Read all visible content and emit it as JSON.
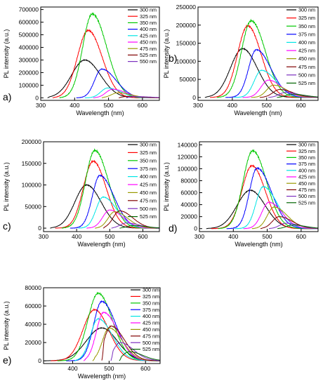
{
  "chart_data": [
    {
      "type": "line",
      "panel_label": "a)",
      "xlabel": "Wavelength (nm)",
      "ylabel": "PL intensity (a.u.)",
      "xlim": [
        300,
        650
      ],
      "ylim": [
        -20000,
        720000
      ],
      "xticks": [
        300,
        400,
        500,
        600
      ],
      "yticks": [
        0,
        100000,
        200000,
        300000,
        400000,
        500000,
        600000,
        700000
      ],
      "ytick_labels": [
        "0",
        "100000",
        "200000",
        "300000",
        "400000",
        "500000",
        "600000",
        "700000"
      ],
      "legend_position": "top-right",
      "series": [
        {
          "name": "300 nm",
          "color": "#000000",
          "start": 320,
          "peak": 430,
          "amp": 300000,
          "sl": 55,
          "sr": 65
        },
        {
          "name": "325 nm",
          "color": "#ff0000",
          "start": 335,
          "peak": 440,
          "amp": 535000,
          "sl": 45,
          "sr": 58
        },
        {
          "name": "350 nm",
          "color": "#00c800",
          "start": 355,
          "peak": 452,
          "amp": 665000,
          "sl": 40,
          "sr": 60
        },
        {
          "name": "400 nm",
          "color": "#0000ff",
          "start": 405,
          "peak": 480,
          "amp": 228000,
          "sl": 30,
          "sr": 60
        },
        {
          "name": "425 nm",
          "color": "#00e5e5",
          "start": 430,
          "peak": 497,
          "amp": 78000,
          "sl": 28,
          "sr": 55
        },
        {
          "name": "450 nm",
          "color": "#ff00ff",
          "start": 455,
          "peak": 512,
          "amp": 68000,
          "sl": 28,
          "sr": 55
        },
        {
          "name": "475 nm",
          "color": "#999900",
          "start": 480,
          "peak": 528,
          "amp": 40000,
          "sl": 28,
          "sr": 55
        },
        {
          "name": "525 nm",
          "color": "#800000",
          "start": 530,
          "peak": 560,
          "amp": 12000,
          "sl": 25,
          "sr": 60
        },
        {
          "name": "550 nm",
          "color": "#7b2fbf",
          "start": 552,
          "peak": 580,
          "amp": 10000,
          "sl": 25,
          "sr": 60
        }
      ]
    },
    {
      "type": "line",
      "panel_label": "b)",
      "xlabel": "Wavelength (nm)",
      "ylabel": "PL intensity (a.u.)",
      "xlim": [
        300,
        650
      ],
      "ylim": [
        -8000,
        250000
      ],
      "xticks": [
        300,
        400,
        500,
        600
      ],
      "yticks": [
        0,
        50000,
        100000,
        150000,
        200000,
        250000
      ],
      "ytick_labels": [
        "0",
        "50000",
        "100000",
        "150000",
        "200000",
        "250000"
      ],
      "legend_position": "top-right",
      "series": [
        {
          "name": "300 nm",
          "color": "#000000",
          "start": 320,
          "peak": 430,
          "amp": 135000,
          "sl": 50,
          "sr": 60
        },
        {
          "name": "325 nm",
          "color": "#ff0000",
          "start": 335,
          "peak": 445,
          "amp": 198000,
          "sl": 42,
          "sr": 55
        },
        {
          "name": "350 nm",
          "color": "#00c800",
          "start": 355,
          "peak": 455,
          "amp": 212000,
          "sl": 40,
          "sr": 58
        },
        {
          "name": "375 nm",
          "color": "#0000ff",
          "start": 380,
          "peak": 470,
          "amp": 132000,
          "sl": 32,
          "sr": 60
        },
        {
          "name": "400 nm",
          "color": "#00e5e5",
          "start": 405,
          "peak": 485,
          "amp": 75000,
          "sl": 30,
          "sr": 60
        },
        {
          "name": "425 nm",
          "color": "#ff00ff",
          "start": 430,
          "peak": 505,
          "amp": 48000,
          "sl": 30,
          "sr": 55
        },
        {
          "name": "450 nm",
          "color": "#999900",
          "start": 455,
          "peak": 520,
          "amp": 34000,
          "sl": 28,
          "sr": 55
        },
        {
          "name": "475 nm",
          "color": "#800000",
          "start": 480,
          "peak": 538,
          "amp": 22000,
          "sl": 28,
          "sr": 55
        },
        {
          "name": "500 nm",
          "color": "#7b2fbf",
          "start": 505,
          "peak": 555,
          "amp": 14000,
          "sl": 26,
          "sr": 55
        },
        {
          "name": "525 nm",
          "color": "#006400",
          "start": 530,
          "peak": 575,
          "amp": 9000,
          "sl": 25,
          "sr": 55
        }
      ]
    },
    {
      "type": "line",
      "panel_label": "c)",
      "xlabel": "Wavelength (nm)",
      "ylabel": "PL intensity (a.u.)",
      "xlim": [
        300,
        650
      ],
      "ylim": [
        -8000,
        200000
      ],
      "xticks": [
        300,
        400,
        500,
        600
      ],
      "yticks": [
        0,
        50000,
        100000,
        150000,
        200000
      ],
      "ytick_labels": [
        "0",
        "50000",
        "100000",
        "150000",
        "200000"
      ],
      "legend_position": "top-right",
      "series": [
        {
          "name": "300 nm",
          "color": "#000000",
          "start": 320,
          "peak": 430,
          "amp": 100000,
          "sl": 50,
          "sr": 62
        },
        {
          "name": "325 nm",
          "color": "#ff0000",
          "start": 335,
          "peak": 450,
          "amp": 155000,
          "sl": 42,
          "sr": 55
        },
        {
          "name": "350 nm",
          "color": "#00c800",
          "start": 355,
          "peak": 455,
          "amp": 180000,
          "sl": 40,
          "sr": 58
        },
        {
          "name": "375 nm",
          "color": "#0000ff",
          "start": 380,
          "peak": 470,
          "amp": 122000,
          "sl": 32,
          "sr": 60
        },
        {
          "name": "400 nm",
          "color": "#00e5e5",
          "start": 405,
          "peak": 480,
          "amp": 72000,
          "sl": 30,
          "sr": 58
        },
        {
          "name": "425 nm",
          "color": "#ff00ff",
          "start": 430,
          "peak": 500,
          "amp": 42000,
          "sl": 30,
          "sr": 55
        },
        {
          "name": "450 nm",
          "color": "#999900",
          "start": 455,
          "peak": 515,
          "amp": 38000,
          "sl": 28,
          "sr": 55
        },
        {
          "name": "475 nm",
          "color": "#800000",
          "start": 480,
          "peak": 530,
          "amp": 40000,
          "sl": 28,
          "sr": 55
        },
        {
          "name": "500 nm",
          "color": "#7b2fbf",
          "start": 505,
          "peak": 550,
          "amp": 12000,
          "sl": 26,
          "sr": 55
        },
        {
          "name": "525 nm",
          "color": "#006400",
          "start": 530,
          "peak": 570,
          "amp": 6000,
          "sl": 25,
          "sr": 55
        }
      ]
    },
    {
      "type": "line",
      "panel_label": "d)",
      "xlabel": "Wavelength (nm)",
      "ylabel": "PL intensity (a.u.)",
      "xlim": [
        300,
        650
      ],
      "ylim": [
        -5000,
        145000
      ],
      "xticks": [
        300,
        400,
        500,
        600
      ],
      "yticks": [
        0,
        20000,
        40000,
        60000,
        80000,
        100000,
        120000,
        140000
      ],
      "ytick_labels": [
        "0",
        "20000",
        "40000",
        "60000",
        "80000",
        "100000",
        "120000",
        "140000"
      ],
      "legend_position": "top-right",
      "series": [
        {
          "name": "300 nm",
          "color": "#000000",
          "start": 320,
          "peak": 450,
          "amp": 64000,
          "sl": 55,
          "sr": 62
        },
        {
          "name": "325 nm",
          "color": "#ff0000",
          "start": 335,
          "peak": 455,
          "amp": 105000,
          "sl": 42,
          "sr": 55
        },
        {
          "name": "350 nm",
          "color": "#00c800",
          "start": 355,
          "peak": 457,
          "amp": 130000,
          "sl": 40,
          "sr": 58
        },
        {
          "name": "375 nm",
          "color": "#0000ff",
          "start": 380,
          "peak": 470,
          "amp": 101000,
          "sl": 32,
          "sr": 60
        },
        {
          "name": "400 nm",
          "color": "#00e5e5",
          "start": 405,
          "peak": 488,
          "amp": 70000,
          "sl": 30,
          "sr": 58
        },
        {
          "name": "425 nm",
          "color": "#ff00ff",
          "start": 430,
          "peak": 505,
          "amp": 44000,
          "sl": 30,
          "sr": 55
        },
        {
          "name": "450 nm",
          "color": "#999900",
          "start": 455,
          "peak": 520,
          "amp": 36000,
          "sl": 28,
          "sr": 55
        },
        {
          "name": "475 nm",
          "color": "#800000",
          "start": 480,
          "peak": 535,
          "amp": 20000,
          "sl": 28,
          "sr": 55
        },
        {
          "name": "500 nm",
          "color": "#7b2fbf",
          "start": 505,
          "peak": 555,
          "amp": 9000,
          "sl": 26,
          "sr": 55
        },
        {
          "name": "525 nm",
          "color": "#006400",
          "start": 530,
          "peak": 575,
          "amp": 6000,
          "sl": 25,
          "sr": 55
        }
      ]
    },
    {
      "type": "line",
      "panel_label": "e)",
      "xlabel": "Wavelength (nm)",
      "ylabel": "PL intensity (a.u.)",
      "xlim": [
        320,
        640
      ],
      "ylim": [
        -3000,
        80000
      ],
      "xticks": [
        400,
        500,
        600
      ],
      "yticks": [
        0,
        20000,
        40000,
        60000,
        80000
      ],
      "ytick_labels": [
        "0",
        "20000",
        "40000",
        "60000",
        "80000"
      ],
      "legend_position": "top-right",
      "series": [
        {
          "name": "300 nm",
          "color": "#000000",
          "start": 322,
          "peak": 480,
          "amp": 36000,
          "sl": 60,
          "sr": 60
        },
        {
          "name": "325 nm",
          "color": "#ff0000",
          "start": 340,
          "peak": 460,
          "amp": 56000,
          "sl": 45,
          "sr": 55
        },
        {
          "name": "350 nm",
          "color": "#00c800",
          "start": 358,
          "peak": 470,
          "amp": 74000,
          "sl": 40,
          "sr": 55
        },
        {
          "name": "375 nm",
          "color": "#0000ff",
          "start": 382,
          "peak": 480,
          "amp": 65000,
          "sl": 32,
          "sr": 55
        },
        {
          "name": "400 nm",
          "color": "#00e5e5",
          "start": 405,
          "peak": 470,
          "amp": 46000,
          "sl": 30,
          "sr": 55
        },
        {
          "name": "425 nm",
          "color": "#ff00ff",
          "start": 430,
          "peak": 485,
          "amp": 53000,
          "sl": 28,
          "sr": 55
        },
        {
          "name": "450 nm",
          "color": "#999900",
          "start": 455,
          "peak": 500,
          "amp": 36000,
          "sl": 26,
          "sr": 52
        },
        {
          "name": "475 nm",
          "color": "#800000",
          "start": 480,
          "peak": 505,
          "amp": 38000,
          "sl": 26,
          "sr": 52
        },
        {
          "name": "500 nm",
          "color": "#7b2fbf",
          "start": 505,
          "peak": 530,
          "amp": 20000,
          "sl": 25,
          "sr": 52
        },
        {
          "name": "525 nm",
          "color": "#006400",
          "start": 528,
          "peak": 555,
          "amp": 10000,
          "sl": 24,
          "sr": 52
        }
      ]
    }
  ]
}
